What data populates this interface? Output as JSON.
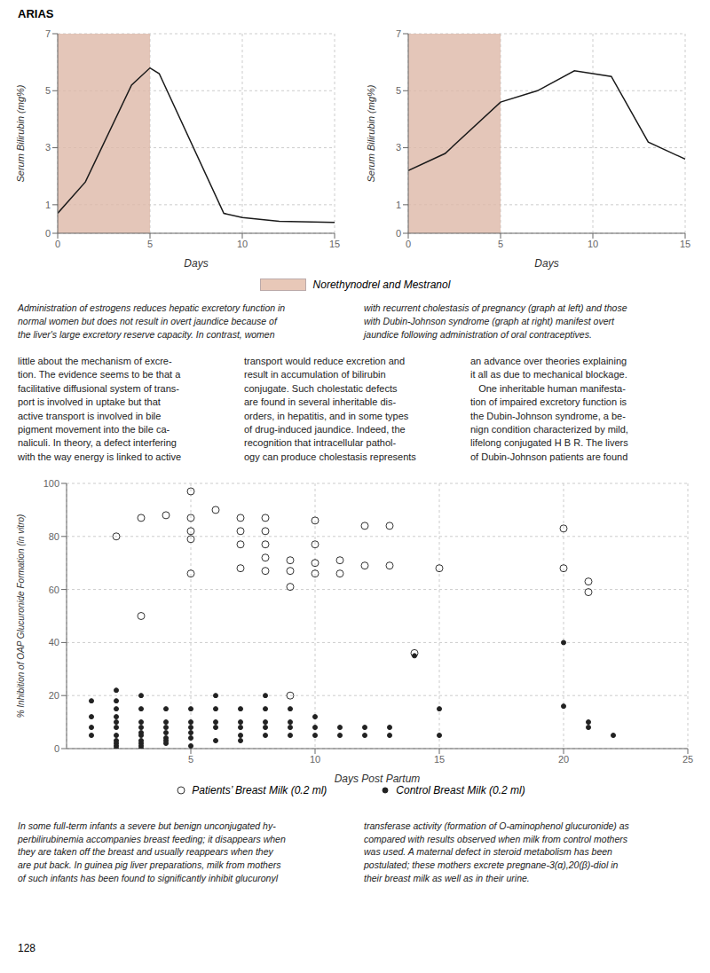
{
  "chart_data": [
    {
      "type": "line",
      "title": "ARIAS",
      "x": [
        0,
        1.5,
        4,
        5,
        5.5,
        9,
        10,
        12,
        15
      ],
      "values": [
        0.7,
        1.8,
        5.2,
        5.8,
        5.6,
        0.7,
        0.55,
        0.42,
        0.38
      ],
      "color": "#1a1a1a",
      "xlabel": "Days",
      "ylabel": "Serum Bilirubin (mg%)",
      "xlim": [
        0,
        15
      ],
      "ylim": [
        0,
        7
      ],
      "xticks": [
        0,
        5,
        10,
        15
      ],
      "yticks": [
        0,
        1,
        3,
        5,
        7
      ],
      "grid": true,
      "shaded_x": [
        0,
        5
      ],
      "shaded_color": "#ddb8a8",
      "shaded_label": "Norethynodrel and Mestranol",
      "shaded_legend_color": "#e8c8b8",
      "annotations": [
        "Administration of estrogens reduces hepatic excretory function in\nnormal women but does not result in overt jaundice because of\nthe liver's large excretory reserve capacity. In contrast, women",
        "with recurrent cholestasis of pregnancy (graph at left) and those\nwith Dubin-Johnson syndrome (graph at right) manifest overt\njaundice following administration of oral contraceptives.",
        "little about the mechanism of excre-\ntion. The evidence seems to be that a\nfacilitative diffusional system of trans-\nport is involved in uptake but that\nactive transport is involved in bile\npigment movement into the bile ca-\nnaliculi. In theory, a defect interfering\nwith the way energy is linked to active",
        "transport would reduce excretion and\nresult in accumulation of bilirubin\nconjugate. Such cholestatic defects\nare found in several inheritable dis-\norders, in hepatitis, and in some types\nof drug-induced jaundice. Indeed, the\nrecognition that intracellular pathol-\nogy can produce cholestasis represents",
        "an advance over theories explaining\nit all as due to mechanical blockage.\n   One inheritable human manifesta-\ntion of impaired excretory function is\nthe Dubin-Johnson syndrome, a be-\nnign condition characterized by mild,\nlifelong conjugated H B R. The livers\nof Dubin-Johnson patients are found"
      ]
    },
    {
      "type": "line",
      "x": [
        0,
        2,
        5,
        7,
        9,
        11,
        13,
        15
      ],
      "values": [
        2.2,
        2.8,
        4.6,
        5.0,
        5.7,
        5.5,
        3.2,
        2.6
      ],
      "color": "#1a1a1a",
      "xlabel": "Days",
      "ylabel": "Serum Bilirubin (mg%)",
      "xlim": [
        0,
        15
      ],
      "ylim": [
        0,
        7
      ],
      "xticks": [
        0,
        5,
        10,
        15
      ],
      "yticks": [
        0,
        1,
        3,
        5,
        7
      ],
      "grid": true,
      "shaded_x": [
        0,
        5
      ],
      "shaded_color": "#ddb8a8"
    },
    {
      "type": "scatter",
      "xlabel": "Days Post Partum",
      "ylabel": "% Inhibition of OAP Glucuronide Formation (in vitro)",
      "xlim": [
        0,
        25
      ],
      "ylim": [
        0,
        100
      ],
      "xticks": [
        5,
        10,
        15,
        20,
        25
      ],
      "yticks": [
        0,
        20,
        40,
        60,
        80,
        100
      ],
      "grid": true,
      "series": [
        {
          "name": "Patients’ Breast Milk (0.2 ml)",
          "color": "#333333",
          "marker": "open",
          "x": [
            2,
            3,
            3,
            4,
            5,
            5,
            5,
            5,
            5,
            6,
            7,
            7,
            7,
            7,
            8,
            8,
            8,
            8,
            8,
            9,
            9,
            9,
            9,
            10,
            10,
            10,
            10,
            11,
            11,
            12,
            12,
            13,
            13,
            14,
            15,
            20,
            20,
            21,
            21
          ],
          "values": [
            80,
            87,
            50,
            88,
            97,
            87,
            82,
            79,
            66,
            90,
            87,
            82,
            77,
            68,
            87,
            82,
            77,
            72,
            67,
            71,
            67,
            61,
            20,
            86,
            77,
            70,
            66,
            71,
            66,
            84,
            69,
            84,
            69,
            36,
            68,
            83,
            68,
            63,
            59
          ]
        },
        {
          "name": "Control Breast Milk (0.2 ml)",
          "color": "#222222",
          "marker": "circle",
          "x": [
            1,
            1,
            1,
            1,
            2,
            2,
            2,
            2,
            2,
            2,
            2,
            2,
            2,
            2,
            2,
            3,
            3,
            3,
            3,
            3,
            3,
            3,
            3,
            3,
            3,
            4,
            4,
            4,
            4,
            4,
            4,
            4,
            5,
            5,
            5,
            5,
            5,
            5,
            6,
            6,
            6,
            6,
            6,
            7,
            7,
            7,
            7,
            7,
            8,
            8,
            8,
            8,
            8,
            9,
            9,
            9,
            9,
            10,
            10,
            10,
            11,
            11,
            12,
            12,
            13,
            13,
            14,
            15,
            15,
            20,
            20,
            21,
            21,
            22
          ],
          "values": [
            18,
            12,
            8,
            5,
            22,
            18,
            15,
            12,
            10,
            8,
            5,
            3,
            2,
            1,
            0,
            20,
            15,
            10,
            8,
            6,
            5,
            3,
            2,
            1,
            0,
            15,
            10,
            8,
            6,
            4,
            3,
            2,
            1,
            15,
            10,
            8,
            6,
            4,
            3,
            20,
            15,
            10,
            8,
            5,
            3,
            15,
            10,
            8,
            20,
            15,
            10,
            8,
            5,
            15,
            10,
            8,
            5,
            12,
            8,
            5,
            8,
            5,
            8,
            5,
            8,
            5,
            35,
            15,
            5,
            40,
            16,
            10,
            8,
            5
          ]
        }
      ],
      "annotations": [
        "In some full-term infants a severe but benign unconjugated hy-\nperbilirubinemia accompanies breast feeding; it disappears when\nthey are taken off the breast and usually reappears when they\nare put back. In guinea pig liver preparations, milk from mothers\nof such infants has been found to significantly inhibit glucuronyl",
        "transferase activity (formation of O-aminophenol glucuronide) as\ncompared with results observed when milk from control mothers\nwas used. A maternal defect in steroid metabolism has been\npostulated; these mothers excrete pregnane-3(α),20(β)-diol in\ntheir breast milk as well as in their urine.",
        "128"
      ]
    }
  ]
}
